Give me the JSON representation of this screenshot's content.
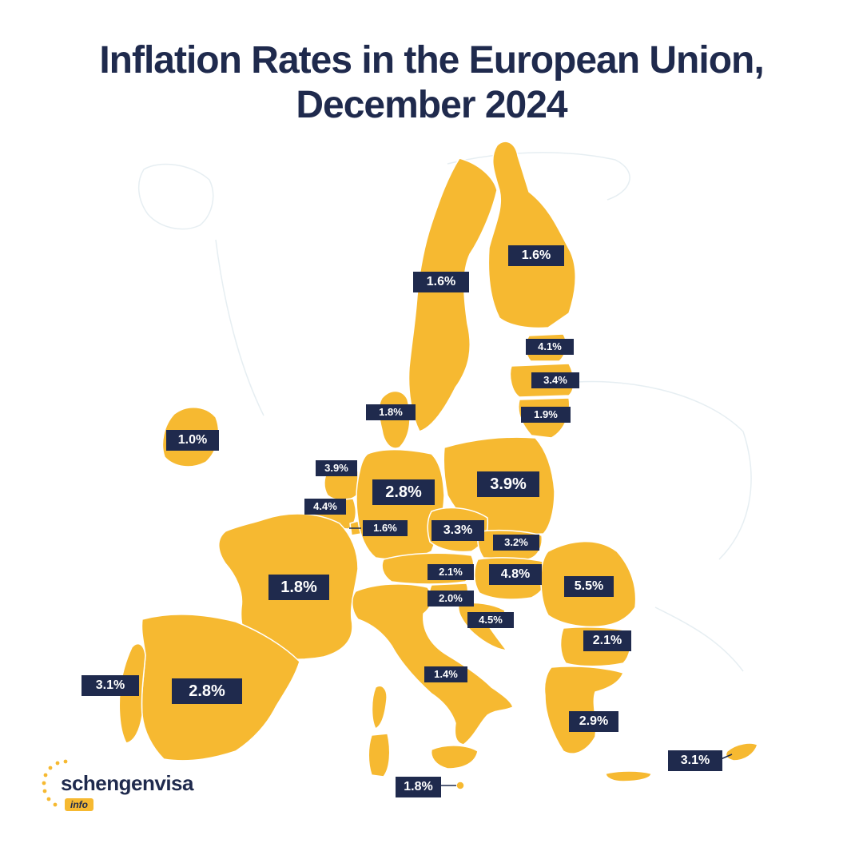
{
  "title": {
    "line1": "Inflation Rates in the European Union,",
    "line2": "December 2024"
  },
  "colors": {
    "land": "#f6b931",
    "label_bg": "#1f2a4d",
    "label_text": "#ffffff",
    "title": "#1f2a4d",
    "background": "#ffffff"
  },
  "labels": {
    "finland": "1.6%",
    "sweden": "1.6%",
    "estonia": "4.1%",
    "latvia": "3.4%",
    "lithuania": "1.9%",
    "denmark": "1.8%",
    "ireland": "1.0%",
    "netherlands": "3.9%",
    "belgium": "4.4%",
    "luxembourg": "1.6%",
    "germany": "2.8%",
    "poland": "3.9%",
    "czechia": "3.3%",
    "slovakia": "3.2%",
    "austria": "2.1%",
    "hungary": "4.8%",
    "slovenia": "2.0%",
    "croatia": "4.5%",
    "romania": "5.5%",
    "bulgaria": "2.1%",
    "france": "1.8%",
    "italy": "1.4%",
    "spain": "2.8%",
    "portugal": "3.1%",
    "greece": "2.9%",
    "cyprus": "3.1%",
    "malta": "1.8%"
  },
  "logo": {
    "name": "schengenvisa",
    "badge": "info"
  }
}
